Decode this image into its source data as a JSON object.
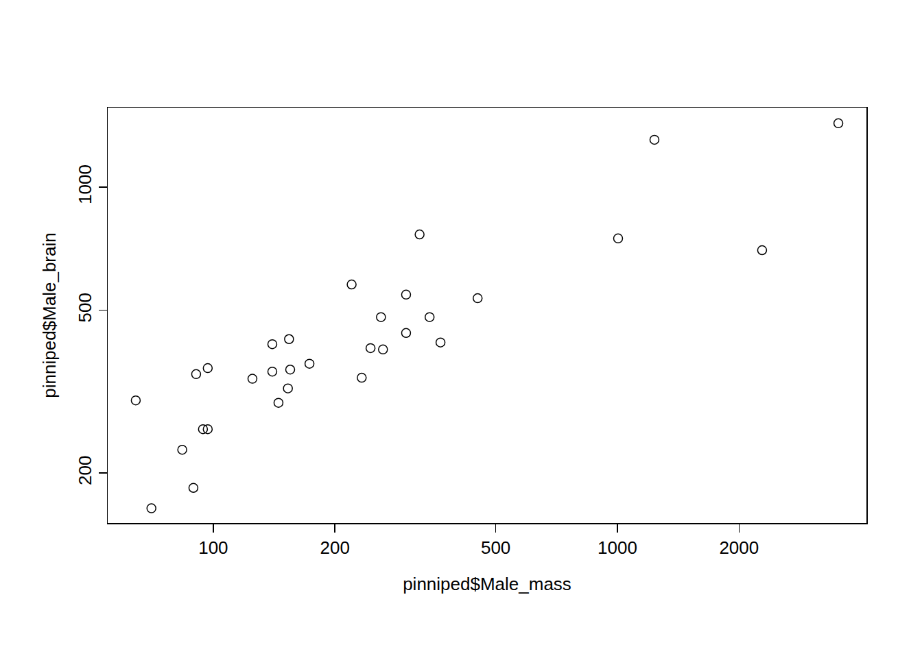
{
  "chart_data": {
    "type": "scatter",
    "x_label": "pinniped$Male_mass",
    "y_label": "pinniped$Male_brain",
    "x": [
      64.3,
      70.3,
      83.8,
      89.3,
      90.7,
      94.3,
      96.9,
      96.9,
      125,
      140,
      140,
      145,
      153,
      154,
      155,
      173,
      220,
      233,
      245,
      260,
      263,
      300,
      300,
      324,
      343,
      365,
      451,
      1004,
      1235,
      2281,
      3522
    ],
    "values": [
      301,
      164,
      228,
      184,
      349,
      256,
      256,
      361,
      340,
      413,
      354,
      297,
      322,
      425,
      358,
      370,
      578,
      342,
      404,
      481,
      401,
      546,
      440,
      766,
      481,
      417,
      535,
      749,
      1305,
      701,
      1432
    ],
    "xlim": [
      54.8,
      4133
    ],
    "ylim": [
      151,
      1564
    ],
    "xticks": [
      100,
      200,
      500,
      1000,
      2000
    ],
    "yticks": [
      200,
      500,
      1000
    ],
    "log": true,
    "grid": false,
    "marker": "open circle",
    "color": "#000000"
  }
}
